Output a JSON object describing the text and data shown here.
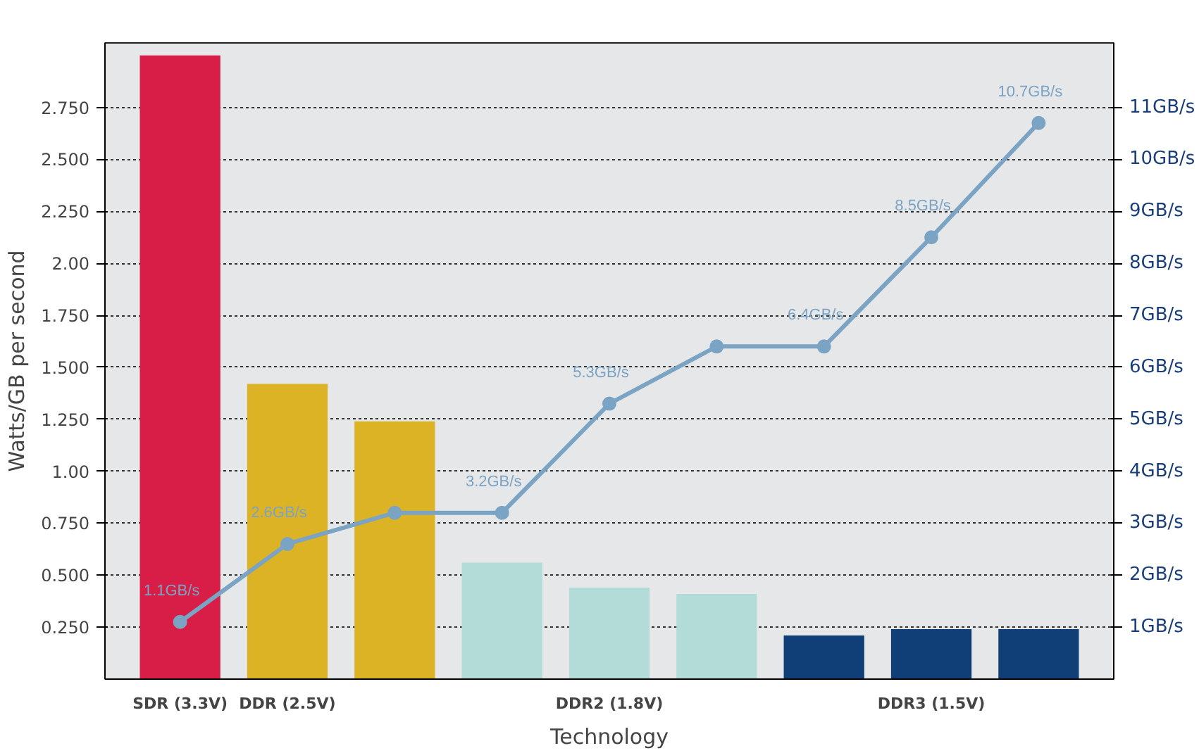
{
  "chart_data": {
    "type": "bar",
    "xlabel": "Technology",
    "ylabel": "Watts/GB per second",
    "categories": [
      "SDR (3.3V)",
      "DDR (2.5V)",
      null,
      null,
      "DDR2 (1.8V)",
      null,
      null,
      "DDR3 (1.5V)",
      null
    ],
    "ylim": [
      0,
      3.06
    ],
    "yticks": [
      {
        "value": 0.25,
        "label": "0.250"
      },
      {
        "value": 0.5,
        "label": "0.500"
      },
      {
        "value": 0.75,
        "label": "0.750"
      },
      {
        "value": 1,
        "label": "1.00"
      },
      {
        "value": 1.25,
        "label": "1.250"
      },
      {
        "value": 1.5,
        "label": "1.500"
      },
      {
        "value": 1.75,
        "label": "1.750"
      },
      {
        "value": 2,
        "label": "2.00"
      },
      {
        "value": 2.25,
        "label": "2.250"
      },
      {
        "value": 2.5,
        "label": "2.500"
      },
      {
        "value": 2.75,
        "label": "2.750"
      }
    ],
    "y2lim": [
      0,
      12.24
    ],
    "y2ticks": [
      {
        "value": 1,
        "label": "1GB/s"
      },
      {
        "value": 2,
        "label": "2GB/s"
      },
      {
        "value": 3,
        "label": "3GB/s"
      },
      {
        "value": 4,
        "label": "4GB/s"
      },
      {
        "value": 5,
        "label": "5GB/s"
      },
      {
        "value": 6,
        "label": "6GB/s"
      },
      {
        "value": 7,
        "label": "7GB/s"
      },
      {
        "value": 8,
        "label": "8GB/s"
      },
      {
        "value": 9,
        "label": "9GB/s"
      },
      {
        "value": 10,
        "label": "10GB/s"
      },
      {
        "value": 11,
        "label": "11GB/s"
      }
    ],
    "series": [
      {
        "values": [
          3.0,
          1.42,
          1.24,
          0.56,
          0.44,
          0.41,
          0.21,
          0.24,
          0.24
        ],
        "colors": [
          "#d81e47",
          "#dcb325",
          "#dcb325",
          "#b3dcd9",
          "#b3dcd9",
          "#b3dcd9",
          "#0f3f76",
          "#0f3f76",
          "#0f3f76"
        ]
      },
      {
        "type": "line",
        "axis": "y2",
        "color": "#7ba3c3",
        "marker": "circle",
        "values": [
          1.1,
          2.6,
          3.2,
          3.2,
          5.3,
          6.4,
          6.4,
          8.5,
          10.7
        ],
        "value_labels": [
          "1.1GB/s",
          "2.6GB/s",
          null,
          "3.2GB/s",
          "5.3GB/s",
          null,
          "6.4GB/s",
          "8.5GB/s",
          "10.7GB/s"
        ]
      }
    ],
    "grid": "y"
  }
}
